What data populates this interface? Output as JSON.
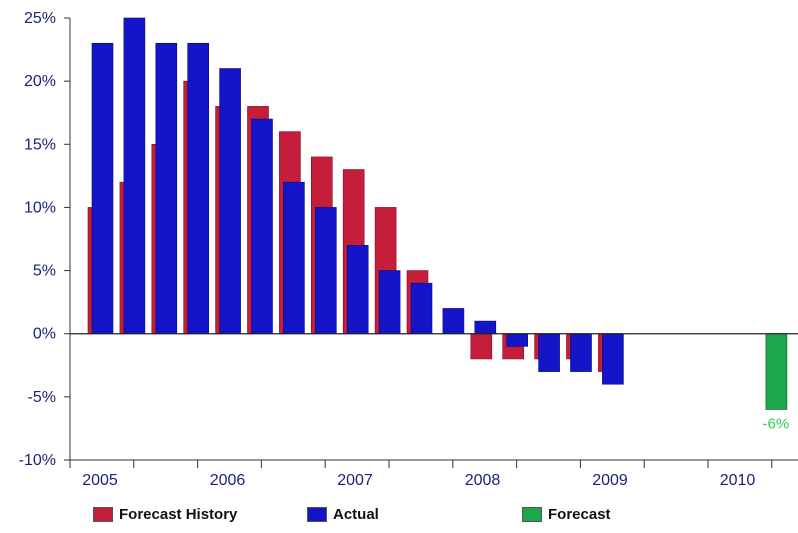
{
  "chart_data": {
    "type": "bar",
    "title": "",
    "xlabel": "",
    "ylabel": "",
    "ylim": [
      -10,
      25
    ],
    "yticks": [
      25,
      20,
      15,
      10,
      5,
      0,
      -5,
      -10
    ],
    "ytick_labels": [
      "25%",
      "20%",
      "15%",
      "10%",
      "5%",
      "0%",
      "-5%",
      "-10%"
    ],
    "xtick_labels": [
      "2005",
      "2006",
      "2007",
      "2008",
      "2009",
      "2010"
    ],
    "series": [
      {
        "name": "Forecast History",
        "color": "#c41e3a",
        "values": [
          10,
          12,
          15,
          20,
          18,
          18,
          16,
          14,
          13,
          10,
          5,
          null,
          -2,
          -2,
          -2,
          -2,
          -3,
          null,
          null,
          null,
          null,
          null
        ]
      },
      {
        "name": "Actual",
        "color": "#1414c8",
        "values": [
          23,
          25,
          23,
          23,
          21,
          17,
          12,
          10,
          7,
          5,
          4,
          2,
          1,
          -1,
          -3,
          -3,
          -4,
          null,
          null,
          null,
          null,
          null
        ]
      },
      {
        "name": "Forecast",
        "color": "#1aa84a",
        "values": [
          null,
          null,
          null,
          null,
          null,
          null,
          null,
          null,
          null,
          null,
          null,
          null,
          null,
          null,
          null,
          null,
          null,
          null,
          null,
          null,
          null,
          -6
        ]
      }
    ],
    "annotations": [
      {
        "text": "-6%",
        "series": "Forecast",
        "color": "#2ecc55"
      }
    ],
    "legend": {
      "position": "bottom",
      "items": [
        "Forecast History",
        "Actual",
        "Forecast"
      ]
    },
    "grid": false
  }
}
